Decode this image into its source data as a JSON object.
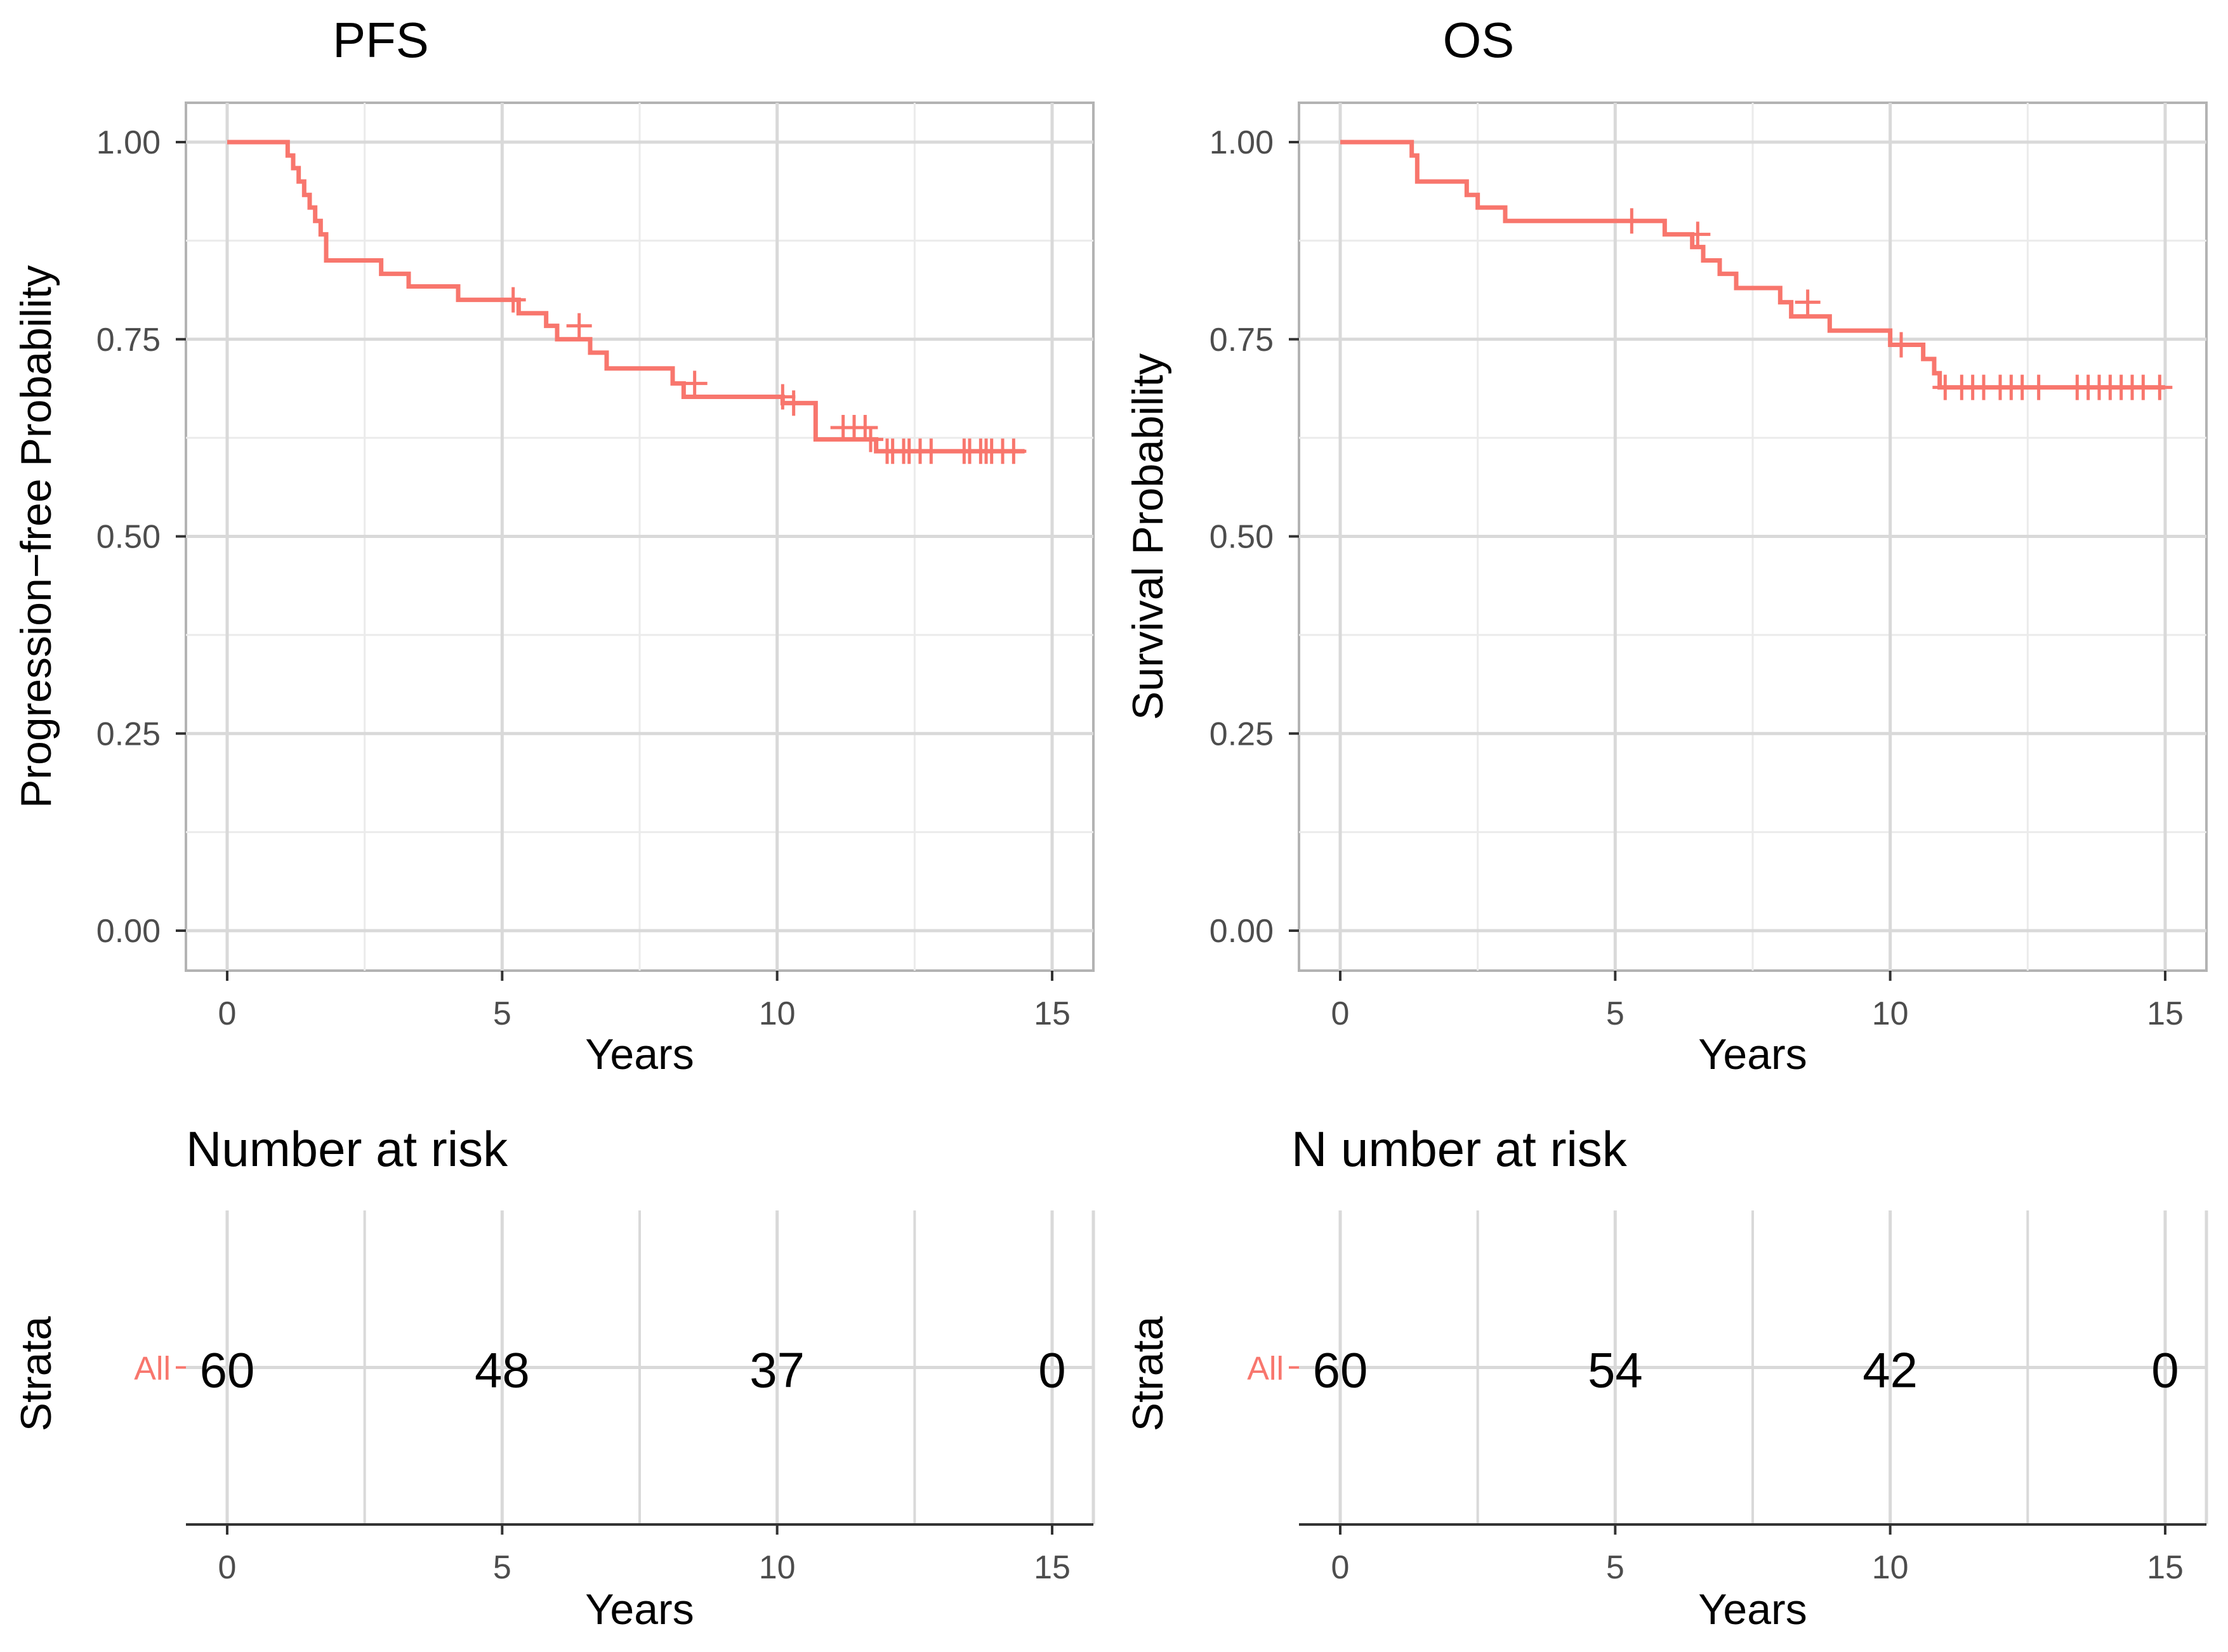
{
  "colors": {
    "curve": "#f8766d",
    "grid": "#d9d9d9",
    "grid_minor": "#ebebeb",
    "border": "#b3b3b3",
    "tick_text": "#4d4d4d"
  },
  "chart_data": [
    {
      "id": "pfs",
      "type": "line",
      "subtype": "kaplan-meier",
      "title": "PFS",
      "xlabel": "Years",
      "ylabel": "Progression−free Probability",
      "xlim": [
        0,
        15
      ],
      "ylim": [
        0,
        1
      ],
      "x_ticks": [
        0,
        5,
        10,
        15
      ],
      "x_tick_labels": [
        "0",
        "5",
        "10",
        "15"
      ],
      "y_ticks": [
        0,
        0.25,
        0.5,
        0.75,
        1.0
      ],
      "y_tick_labels": [
        "0.00",
        "0.25",
        "0.50",
        "0.75",
        "1.00"
      ],
      "grid": true,
      "series": [
        {
          "name": "All",
          "step": [
            [
              0,
              1.0
            ],
            [
              1.1,
              0.983
            ],
            [
              1.2,
              0.967
            ],
            [
              1.3,
              0.95
            ],
            [
              1.4,
              0.933
            ],
            [
              1.5,
              0.917
            ],
            [
              1.6,
              0.9
            ],
            [
              1.7,
              0.883
            ],
            [
              1.8,
              0.85
            ],
            [
              2.7,
              0.85
            ],
            [
              2.8,
              0.833
            ],
            [
              3.3,
              0.817
            ],
            [
              4.2,
              0.8
            ],
            [
              5.3,
              0.783
            ],
            [
              5.8,
              0.767
            ],
            [
              6.0,
              0.75
            ],
            [
              6.6,
              0.733
            ],
            [
              6.9,
              0.713
            ],
            [
              8.1,
              0.694
            ],
            [
              8.3,
              0.677
            ],
            [
              10.1,
              0.669
            ],
            [
              10.7,
              0.623
            ],
            [
              11.8,
              0.608
            ],
            [
              14.5,
              0.608
            ]
          ],
          "censored": [
            [
              5.2,
              0.8
            ],
            [
              6.4,
              0.767
            ],
            [
              8.5,
              0.694
            ],
            [
              10.1,
              0.677
            ],
            [
              10.3,
              0.669
            ],
            [
              11.2,
              0.638
            ],
            [
              11.4,
              0.638
            ],
            [
              11.6,
              0.638
            ],
            [
              11.7,
              0.623
            ],
            [
              12.0,
              0.608
            ],
            [
              12.1,
              0.608
            ],
            [
              12.3,
              0.608
            ],
            [
              12.4,
              0.608
            ],
            [
              12.6,
              0.608
            ],
            [
              12.8,
              0.608
            ],
            [
              13.4,
              0.608
            ],
            [
              13.5,
              0.608
            ],
            [
              13.7,
              0.608
            ],
            [
              13.8,
              0.608
            ],
            [
              13.9,
              0.608
            ],
            [
              14.1,
              0.608
            ],
            [
              14.3,
              0.608
            ]
          ]
        }
      ]
    },
    {
      "id": "os",
      "type": "line",
      "subtype": "kaplan-meier",
      "title": "OS",
      "xlabel": "Years",
      "ylabel": "Survival Probability",
      "xlim": [
        0,
        15
      ],
      "ylim": [
        0,
        1
      ],
      "x_ticks": [
        0,
        5,
        10,
        15
      ],
      "x_tick_labels": [
        "0",
        "5",
        "10",
        "15"
      ],
      "y_ticks": [
        0,
        0.25,
        0.5,
        0.75,
        1.0
      ],
      "y_tick_labels": [
        "0.00",
        "0.25",
        "0.50",
        "0.75",
        "1.00"
      ],
      "grid": true,
      "series": [
        {
          "name": "All",
          "step": [
            [
              0,
              1.0
            ],
            [
              1.3,
              0.983
            ],
            [
              1.4,
              0.95
            ],
            [
              2.3,
              0.933
            ],
            [
              2.5,
              0.917
            ],
            [
              3.0,
              0.9
            ],
            [
              5.9,
              0.883
            ],
            [
              6.4,
              0.867
            ],
            [
              6.6,
              0.85
            ],
            [
              6.9,
              0.833
            ],
            [
              7.2,
              0.815
            ],
            [
              8.0,
              0.797
            ],
            [
              8.2,
              0.779
            ],
            [
              8.9,
              0.761
            ],
            [
              10.0,
              0.743
            ],
            [
              10.6,
              0.725
            ],
            [
              10.8,
              0.707
            ],
            [
              10.9,
              0.689
            ],
            [
              15.0,
              0.689
            ]
          ],
          "censored": [
            [
              5.3,
              0.9
            ],
            [
              6.5,
              0.883
            ],
            [
              8.5,
              0.797
            ],
            [
              10.2,
              0.743
            ],
            [
              11.0,
              0.689
            ],
            [
              11.3,
              0.689
            ],
            [
              11.5,
              0.689
            ],
            [
              11.7,
              0.689
            ],
            [
              12.0,
              0.689
            ],
            [
              12.2,
              0.689
            ],
            [
              12.4,
              0.689
            ],
            [
              12.7,
              0.689
            ],
            [
              13.4,
              0.689
            ],
            [
              13.6,
              0.689
            ],
            [
              13.8,
              0.689
            ],
            [
              14.0,
              0.689
            ],
            [
              14.2,
              0.689
            ],
            [
              14.4,
              0.689
            ],
            [
              14.6,
              0.689
            ],
            [
              14.9,
              0.689
            ]
          ]
        }
      ]
    },
    {
      "id": "pfs-risk",
      "type": "table",
      "title": "Number at risk",
      "xlabel": "Years",
      "ylabel": "Strata",
      "xlim": [
        0,
        15
      ],
      "x_ticks": [
        0,
        5,
        10,
        15
      ],
      "x_tick_labels": [
        "0",
        "5",
        "10",
        "15"
      ],
      "strata": [
        "All"
      ],
      "rows": [
        {
          "stratum": "All",
          "x": [
            0,
            5,
            10,
            15
          ],
          "values": [
            "60",
            "48",
            "37",
            "0"
          ]
        }
      ],
      "grid": true
    },
    {
      "id": "os-risk",
      "type": "table",
      "title": "N umber at risk",
      "xlabel": "Years",
      "ylabel": "Strata",
      "xlim": [
        0,
        15
      ],
      "x_ticks": [
        0,
        5,
        10,
        15
      ],
      "x_tick_labels": [
        "0",
        "5",
        "10",
        "15"
      ],
      "strata": [
        "All"
      ],
      "rows": [
        {
          "stratum": "All",
          "x": [
            0,
            5,
            10,
            15
          ],
          "values": [
            "60",
            "54",
            "42",
            "0"
          ]
        }
      ],
      "grid": true
    }
  ]
}
